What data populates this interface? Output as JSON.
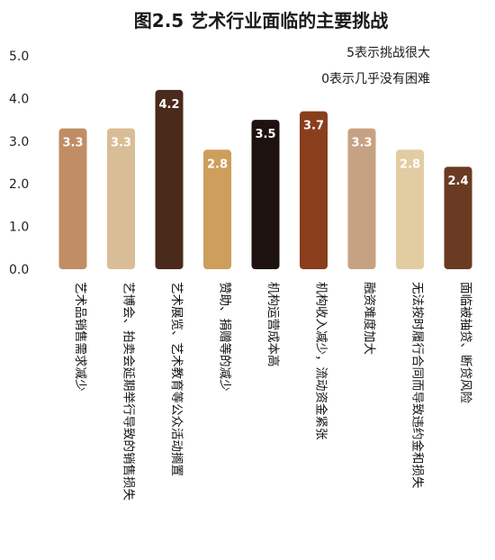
{
  "chart_data": {
    "type": "bar",
    "title": "图2.5  艺术行业面临的主要挑战",
    "notes": [
      "5表示挑战很大",
      "0表示几乎没有困难"
    ],
    "ylim": [
      0,
      5
    ],
    "yticks": [
      "0.0",
      "1.0",
      "2.0",
      "3.0",
      "4.0",
      "5.0"
    ],
    "grid": false,
    "categories": [
      "艺术品销售需求减少",
      "艺博会、拍卖会延期举行导致的销售损失",
      "艺术展览、艺术教育等公众活动搁置",
      "赞助、捐赠等的减少",
      "机构运营成本高",
      "机构收入减少，流动资金紧张",
      "融资难度加大",
      "无法按时履行合同而导致违约金和损失",
      "面临被抽贷、断贷风险"
    ],
    "values": [
      3.3,
      3.3,
      4.2,
      2.8,
      3.5,
      3.7,
      3.3,
      2.8,
      2.4
    ],
    "value_labels": [
      "3.3",
      "3.3",
      "4.2",
      "2.8",
      "3.5",
      "3.7",
      "3.3",
      "2.8",
      "2.4"
    ],
    "colors": [
      "#C08D64",
      "#D8BD96",
      "#4A2A1A",
      "#CE9E5C",
      "#1E1210",
      "#8A3E1C",
      "#C6A283",
      "#E2CCA2",
      "#6B3A22"
    ]
  }
}
